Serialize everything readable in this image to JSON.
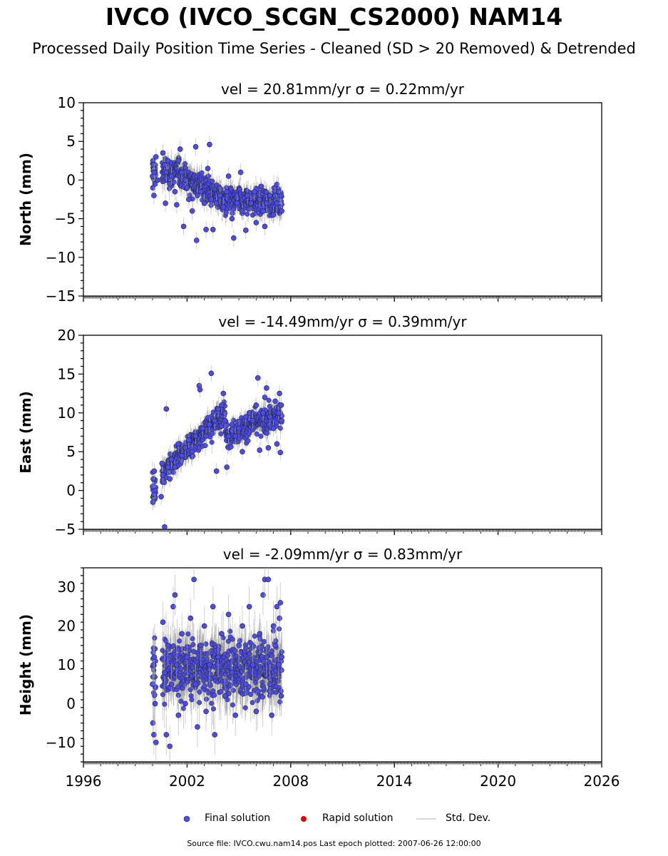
{
  "header": {
    "title": "IVCO (IVCO_SCGN_CS2000) NAM14",
    "subtitle": "Processed Daily Position Time Series - Cleaned (SD > 20 Removed) & Detrended"
  },
  "chart_data": [
    {
      "type": "scatter",
      "title": "vel = 20.81mm/yr   σ = 0.22mm/yr",
      "ylabel": "North (mm)",
      "xlabel": "",
      "xlim": [
        1996,
        2026
      ],
      "ylim": [
        -15,
        10
      ],
      "yticks": [
        -15,
        -10,
        -5,
        0,
        5,
        10
      ],
      "ytick_labels": [
        "−15",
        "−10",
        "−5",
        "0",
        "5",
        "10"
      ],
      "xticks": [
        1996,
        2002,
        2008,
        2014,
        2020,
        2026
      ],
      "xtick_labels": [
        "",
        "",
        "",
        "",
        "",
        ""
      ],
      "series": [
        {
          "name": "Final solution",
          "color": "#4b4bf0",
          "points": [
            [
              2000.0,
              0.5
            ],
            [
              2000.02,
              -1.0
            ],
            [
              2000.05,
              2.0
            ],
            [
              2000.08,
              -2.0
            ],
            [
              2000.1,
              1.0
            ],
            [
              2000.15,
              -0.5
            ],
            [
              2000.2,
              3.0
            ],
            [
              2000.3,
              0.0
            ],
            [
              2000.6,
              3.5
            ],
            [
              2000.7,
              2.0
            ],
            [
              2000.75,
              -3.0
            ],
            [
              2000.8,
              1.0
            ],
            [
              2000.9,
              2.5
            ],
            [
              2001.0,
              -0.5
            ],
            [
              2001.1,
              0.5
            ],
            [
              2001.3,
              -1.5
            ],
            [
              2001.4,
              -3.2
            ],
            [
              2001.5,
              2.5
            ],
            [
              2001.6,
              4.0
            ],
            [
              2001.7,
              1.0
            ],
            [
              2001.8,
              -6.0
            ],
            [
              2001.9,
              0.0
            ],
            [
              2002.0,
              -1.0
            ],
            [
              2002.1,
              -2.5
            ],
            [
              2002.3,
              -4.0
            ],
            [
              2002.5,
              4.3
            ],
            [
              2002.55,
              -7.8
            ],
            [
              2002.6,
              -2.0
            ],
            [
              2002.8,
              -1.5
            ],
            [
              2003.0,
              -3.0
            ],
            [
              2003.1,
              -6.4
            ],
            [
              2003.2,
              1.5
            ],
            [
              2003.3,
              4.6
            ],
            [
              2003.4,
              -2.5
            ],
            [
              2003.5,
              -6.4
            ],
            [
              2003.7,
              -3.0
            ],
            [
              2003.9,
              -2.0
            ],
            [
              2004.1,
              -3.5
            ],
            [
              2004.3,
              -1.5
            ],
            [
              2004.4,
              0.5
            ],
            [
              2004.6,
              -5.0
            ],
            [
              2004.7,
              -7.5
            ],
            [
              2004.9,
              -3.0
            ],
            [
              2005.1,
              1.0
            ],
            [
              2005.2,
              -4.0
            ],
            [
              2005.4,
              -6.5
            ],
            [
              2005.5,
              -2.0
            ],
            [
              2005.7,
              -3.0
            ],
            [
              2005.9,
              -1.5
            ],
            [
              2006.0,
              -5.5
            ],
            [
              2006.2,
              -2.5
            ],
            [
              2006.4,
              -4.0
            ],
            [
              2006.5,
              -6.0
            ],
            [
              2006.6,
              -3.0
            ],
            [
              2006.8,
              -2.0
            ],
            [
              2007.0,
              -4.5
            ],
            [
              2007.1,
              -2.0
            ],
            [
              2007.2,
              -3.0
            ],
            [
              2007.3,
              -1.5
            ],
            [
              2007.35,
              -2.5
            ],
            [
              2007.4,
              -3.5
            ],
            [
              2007.45,
              -2.0
            ],
            [
              2007.48,
              -4.0
            ]
          ]
        }
      ]
    },
    {
      "type": "scatter",
      "title": "vel = -14.49mm/yr   σ = 0.39mm/yr",
      "ylabel": "East (mm)",
      "xlabel": "",
      "xlim": [
        1996,
        2026
      ],
      "ylim": [
        -5,
        20
      ],
      "yticks": [
        -5,
        0,
        5,
        10,
        15,
        20
      ],
      "ytick_labels": [
        "−5",
        "0",
        "5",
        "10",
        "15",
        "20"
      ],
      "xticks": [
        1996,
        2002,
        2008,
        2014,
        2020,
        2026
      ],
      "xtick_labels": [
        "",
        "",
        "",
        "",
        "",
        ""
      ],
      "series": [
        {
          "name": "Final solution",
          "color": "#4b4bf0",
          "points": [
            [
              2000.0,
              0.5
            ],
            [
              2000.02,
              -1.5
            ],
            [
              2000.05,
              1.5
            ],
            [
              2000.08,
              -0.5
            ],
            [
              2000.1,
              2.5
            ],
            [
              2000.15,
              0.0
            ],
            [
              2000.5,
              -0.8
            ],
            [
              2000.55,
              3.5
            ],
            [
              2000.6,
              2.0
            ],
            [
              2000.7,
              -4.7
            ],
            [
              2000.8,
              10.5
            ],
            [
              2000.9,
              3.0
            ],
            [
              2001.0,
              1.5
            ],
            [
              2001.1,
              4.0
            ],
            [
              2001.3,
              3.0
            ],
            [
              2001.5,
              6.0
            ],
            [
              2001.7,
              4.5
            ],
            [
              2001.9,
              5.5
            ],
            [
              2002.1,
              6.5
            ],
            [
              2002.3,
              5.0
            ],
            [
              2002.5,
              7.0
            ],
            [
              2002.7,
              13.5
            ],
            [
              2002.75,
              13.0
            ],
            [
              2002.9,
              8.0
            ],
            [
              2003.1,
              7.0
            ],
            [
              2003.3,
              8.5
            ],
            [
              2003.4,
              15.1
            ],
            [
              2003.6,
              9.0
            ],
            [
              2003.7,
              2.5
            ],
            [
              2003.8,
              10.5
            ],
            [
              2004.0,
              11.0
            ],
            [
              2004.1,
              12.5
            ],
            [
              2004.2,
              9.0
            ],
            [
              2004.3,
              3.0
            ],
            [
              2004.4,
              7.0
            ],
            [
              2004.6,
              8.5
            ],
            [
              2004.8,
              7.0
            ],
            [
              2005.0,
              8.0
            ],
            [
              2005.2,
              5.0
            ],
            [
              2005.4,
              9.5
            ],
            [
              2005.6,
              10.0
            ],
            [
              2005.8,
              9.0
            ],
            [
              2006.0,
              11.0
            ],
            [
              2006.1,
              14.5
            ],
            [
              2006.2,
              5.2
            ],
            [
              2006.4,
              10.0
            ],
            [
              2006.5,
              12.0
            ],
            [
              2006.6,
              13.2
            ],
            [
              2006.7,
              5.5
            ],
            [
              2006.8,
              9.5
            ],
            [
              2007.0,
              8.0
            ],
            [
              2007.1,
              11.5
            ],
            [
              2007.2,
              6.0
            ],
            [
              2007.3,
              10.0
            ],
            [
              2007.35,
              12.5
            ],
            [
              2007.4,
              4.9
            ],
            [
              2007.45,
              11.0
            ],
            [
              2007.48,
              9.0
            ]
          ]
        }
      ]
    },
    {
      "type": "scatter",
      "title": "vel = -2.09mm/yr   σ = 0.83mm/yr",
      "ylabel": "Height (mm)",
      "xlabel": "",
      "xlim": [
        1996,
        2026
      ],
      "ylim": [
        -15,
        35
      ],
      "yticks": [
        -10,
        0,
        10,
        20,
        30
      ],
      "ytick_labels": [
        "−10",
        "0",
        "10",
        "20",
        "30"
      ],
      "xticks": [
        1996,
        2002,
        2008,
        2014,
        2020,
        2026
      ],
      "xtick_labels": [
        "1996",
        "2002",
        "2008",
        "2014",
        "2020",
        "2026"
      ],
      "series": [
        {
          "name": "Final solution",
          "color": "#4b4bf0",
          "points": [
            [
              2000.0,
              5.0
            ],
            [
              2000.02,
              -5.0
            ],
            [
              2000.05,
              10.0
            ],
            [
              2000.08,
              -8.0
            ],
            [
              2000.1,
              12.0
            ],
            [
              2000.15,
              0.0
            ],
            [
              2000.2,
              -10.0
            ],
            [
              2000.6,
              21.0
            ],
            [
              2000.7,
              8.0
            ],
            [
              2000.8,
              -8.0
            ],
            [
              2000.9,
              15.0
            ],
            [
              2001.0,
              -11.0
            ],
            [
              2001.1,
              5.0
            ],
            [
              2001.2,
              25.0
            ],
            [
              2001.3,
              28.0
            ],
            [
              2001.4,
              10.0
            ],
            [
              2001.5,
              -3.0
            ],
            [
              2001.7,
              18.0
            ],
            [
              2001.9,
              0.0
            ],
            [
              2002.0,
              12.0
            ],
            [
              2002.2,
              22.0
            ],
            [
              2002.4,
              32.0
            ],
            [
              2002.5,
              5.0
            ],
            [
              2002.6,
              -6.0
            ],
            [
              2002.8,
              15.0
            ],
            [
              2003.0,
              20.0
            ],
            [
              2003.1,
              -2.0
            ],
            [
              2003.3,
              10.0
            ],
            [
              2003.5,
              25.0
            ],
            [
              2003.6,
              -8.0
            ],
            [
              2003.8,
              12.0
            ],
            [
              2004.0,
              18.0
            ],
            [
              2004.2,
              2.0
            ],
            [
              2004.4,
              23.0
            ],
            [
              2004.6,
              8.0
            ],
            [
              2004.8,
              -3.0
            ],
            [
              2005.0,
              15.0
            ],
            [
              2005.2,
              20.0
            ],
            [
              2005.4,
              5.0
            ],
            [
              2005.6,
              25.0
            ],
            [
              2005.8,
              10.0
            ],
            [
              2006.0,
              -2.0
            ],
            [
              2006.2,
              18.0
            ],
            [
              2006.4,
              28.0
            ],
            [
              2006.5,
              32.0
            ],
            [
              2006.6,
              12.0
            ],
            [
              2006.7,
              32.0
            ],
            [
              2006.8,
              5.0
            ],
            [
              2006.9,
              -3.0
            ],
            [
              2007.0,
              20.0
            ],
            [
              2007.1,
              15.0
            ],
            [
              2007.2,
              25.0
            ],
            [
              2007.3,
              10.0
            ],
            [
              2007.35,
              22.0
            ],
            [
              2007.4,
              26.0
            ],
            [
              2007.45,
              2.0
            ],
            [
              2007.48,
              12.0
            ]
          ]
        }
      ]
    }
  ],
  "legend": {
    "items": [
      {
        "label": "Final solution",
        "kind": "dot",
        "color": "#4b4bf0"
      },
      {
        "label": "Rapid solution",
        "kind": "dot",
        "color": "#e00000"
      },
      {
        "label": "Std. Dev.",
        "kind": "line",
        "color": "#cccccc"
      }
    ]
  },
  "footer": {
    "source": "Source file: IVCO.cwu.nam14.pos  Last epoch plotted: 2007-06-26 12:00:00"
  }
}
